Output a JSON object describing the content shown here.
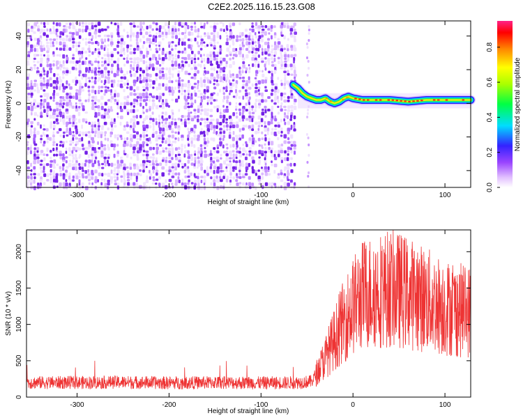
{
  "title": "C2E2.2025.116.15.23.G08",
  "colors": {
    "snr_line": "#ee3333",
    "spectrogram_noise": "#7a22ee",
    "axis": "#000000",
    "background": "#ffffff"
  },
  "chart_data": [
    {
      "type": "heatmap",
      "xlabel": "Height of straight line (km)",
      "ylabel": "Frequency (Hz)",
      "xlim": [
        -355,
        128
      ],
      "ylim": [
        -50,
        49
      ],
      "xticks": [
        -300,
        -200,
        -100,
        0,
        100
      ],
      "yticks": [
        -40,
        -20,
        0,
        20,
        40
      ],
      "grid": false,
      "noise_region_x": [
        -355,
        -65
      ],
      "signal": {
        "x": [
          -65,
          -60,
          -55,
          -50,
          -45,
          -40,
          -35,
          -30,
          -25,
          -20,
          -15,
          -10,
          -5,
          0,
          10,
          20,
          40,
          60,
          80,
          100,
          128
        ],
        "y": [
          11,
          9,
          6,
          4,
          3,
          2,
          2,
          3,
          1,
          0,
          1,
          3,
          4,
          3,
          2,
          2,
          2,
          1,
          2,
          2,
          2
        ]
      },
      "colorbar": {
        "label": "Normalized spectral amplitude",
        "range": [
          0,
          0.95
        ],
        "ticks": [
          "0.0",
          "0.2",
          "0.4",
          "0.6",
          "0.8"
        ],
        "colormap": [
          "#ffffff",
          "#e2c0ff",
          "#9a44ff",
          "#3322ff",
          "#00ddff",
          "#00ff44",
          "#aaff00",
          "#ffff00",
          "#ff8800",
          "#ff0000",
          "#ff2288"
        ]
      }
    },
    {
      "type": "line",
      "xlabel": "Height of straight line (km)",
      "ylabel": "SNR (10 * v/v)",
      "xlim": [
        -355,
        128
      ],
      "ylim": [
        0,
        2300
      ],
      "xticks": [
        -300,
        -200,
        -100,
        0,
        100
      ],
      "yticks": [
        0,
        500,
        1000,
        1500,
        2000
      ],
      "grid": false,
      "series": [
        {
          "x": [
            -355,
            -300,
            -250,
            -200,
            -150,
            -100,
            -60,
            -45,
            -40,
            -30,
            -20,
            -10,
            0,
            10,
            20,
            30,
            40,
            50,
            60,
            70,
            80,
            90,
            100,
            110,
            128
          ],
          "values": [
            200,
            200,
            205,
            195,
            200,
            195,
            200,
            215,
            320,
            550,
            800,
            1050,
            1250,
            1400,
            1450,
            1480,
            1490,
            1470,
            1430,
            1380,
            1340,
            1280,
            1240,
            1200,
            1180
          ]
        }
      ]
    }
  ]
}
